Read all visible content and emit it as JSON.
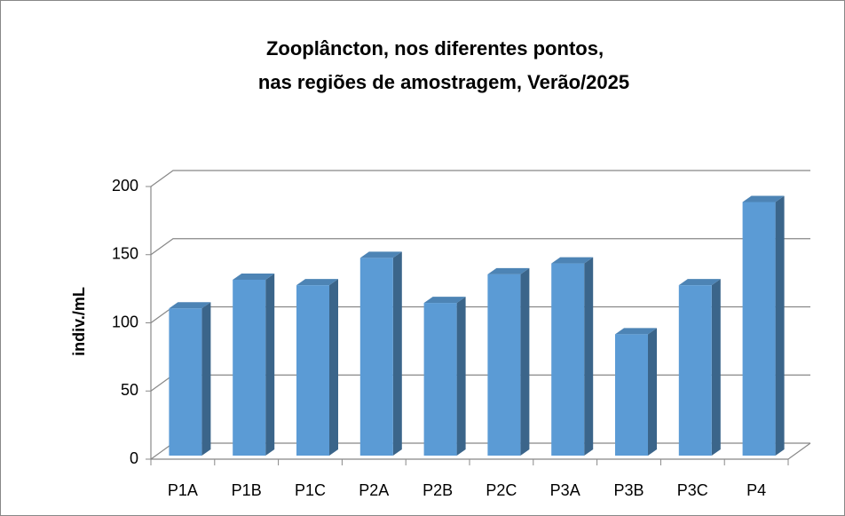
{
  "chart_data": {
    "type": "bar3d",
    "title": [
      "Zooplâncton, nos diferentes pontos,",
      "nas regiões de amostragem, Verão/2025"
    ],
    "y_label": "indiv./mL",
    "categories": [
      "P1A",
      "P1B",
      "P1C",
      "P2A",
      "P2B",
      "P2C",
      "P3A",
      "P3B",
      "P3C",
      "P4"
    ],
    "values": [
      108,
      129,
      125,
      145,
      112,
      133,
      141,
      89,
      125,
      186
    ],
    "color": "#5b9bd5",
    "ylim": [
      0,
      200
    ],
    "yticks": [
      0,
      50,
      100,
      150,
      200
    ],
    "grid": true
  }
}
